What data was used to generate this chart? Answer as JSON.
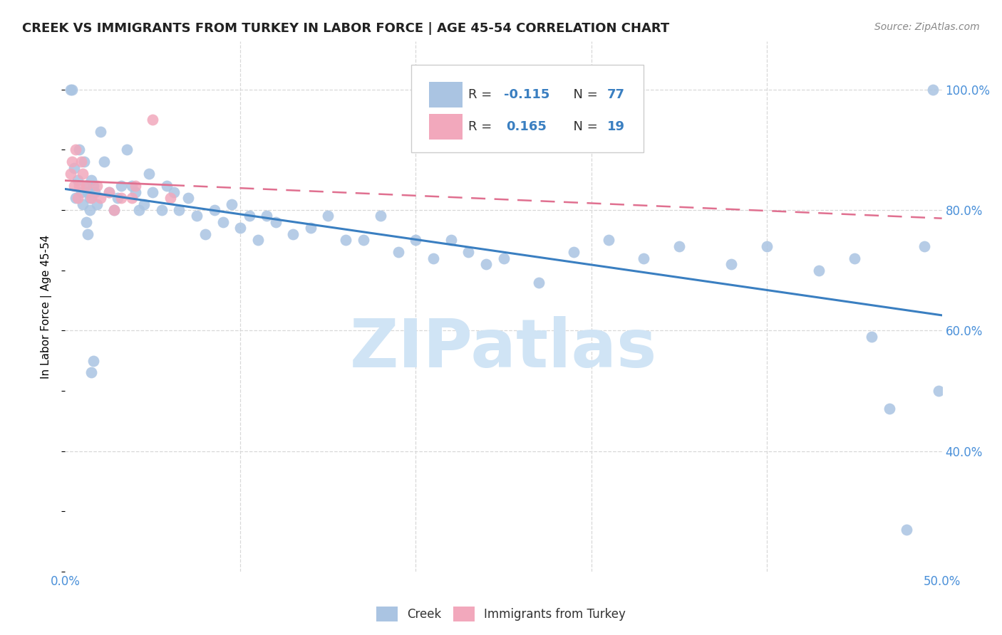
{
  "title": "CREEK VS IMMIGRANTS FROM TURKEY IN LABOR FORCE | AGE 45-54 CORRELATION CHART",
  "source": "Source: ZipAtlas.com",
  "ylabel": "In Labor Force | Age 45-54",
  "xlim": [
    0.0,
    0.5
  ],
  "ylim": [
    0.2,
    1.08
  ],
  "legend_creek_R": "-0.115",
  "legend_creek_N": "77",
  "legend_turkey_R": "0.165",
  "legend_turkey_N": "19",
  "creek_color": "#aac4e2",
  "turkey_color": "#f2a8bc",
  "creek_line_color": "#3a7fc1",
  "turkey_line_color": "#e07090",
  "creek_scatter_x": [
    0.003,
    0.004,
    0.005,
    0.006,
    0.007,
    0.008,
    0.009,
    0.01,
    0.011,
    0.012,
    0.013,
    0.014,
    0.015,
    0.016,
    0.017,
    0.018,
    0.02,
    0.022,
    0.025,
    0.028,
    0.03,
    0.032,
    0.035,
    0.038,
    0.04,
    0.042,
    0.045,
    0.048,
    0.05,
    0.055,
    0.058,
    0.062,
    0.065,
    0.07,
    0.075,
    0.08,
    0.085,
    0.09,
    0.095,
    0.1,
    0.105,
    0.11,
    0.115,
    0.12,
    0.13,
    0.14,
    0.15,
    0.16,
    0.17,
    0.18,
    0.19,
    0.2,
    0.21,
    0.22,
    0.23,
    0.24,
    0.25,
    0.27,
    0.29,
    0.31,
    0.33,
    0.35,
    0.38,
    0.4,
    0.43,
    0.45,
    0.46,
    0.47,
    0.48,
    0.49,
    0.495,
    0.498,
    0.012,
    0.013,
    0.014,
    0.015,
    0.016
  ],
  "creek_scatter_y": [
    1.0,
    1.0,
    0.87,
    0.82,
    0.85,
    0.9,
    0.83,
    0.81,
    0.88,
    0.84,
    0.83,
    0.82,
    0.85,
    0.84,
    0.83,
    0.81,
    0.93,
    0.88,
    0.83,
    0.8,
    0.82,
    0.84,
    0.9,
    0.84,
    0.83,
    0.8,
    0.81,
    0.86,
    0.83,
    0.8,
    0.84,
    0.83,
    0.8,
    0.82,
    0.79,
    0.76,
    0.8,
    0.78,
    0.81,
    0.77,
    0.79,
    0.75,
    0.79,
    0.78,
    0.76,
    0.77,
    0.79,
    0.75,
    0.75,
    0.79,
    0.73,
    0.75,
    0.72,
    0.75,
    0.73,
    0.71,
    0.72,
    0.68,
    0.73,
    0.75,
    0.72,
    0.74,
    0.71,
    0.74,
    0.7,
    0.72,
    0.59,
    0.47,
    0.27,
    0.74,
    1.0,
    0.5,
    0.78,
    0.76,
    0.8,
    0.53,
    0.55
  ],
  "turkey_scatter_x": [
    0.003,
    0.004,
    0.005,
    0.006,
    0.007,
    0.008,
    0.009,
    0.01,
    0.012,
    0.015,
    0.018,
    0.02,
    0.025,
    0.028,
    0.032,
    0.038,
    0.04,
    0.05,
    0.06
  ],
  "turkey_scatter_y": [
    0.86,
    0.88,
    0.84,
    0.9,
    0.82,
    0.84,
    0.88,
    0.86,
    0.84,
    0.82,
    0.84,
    0.82,
    0.83,
    0.8,
    0.82,
    0.82,
    0.84,
    0.95,
    0.82
  ],
  "background_color": "#ffffff",
  "grid_color": "#d8d8d8",
  "watermark_text": "ZIPatlas",
  "watermark_color": "#d0e4f5"
}
